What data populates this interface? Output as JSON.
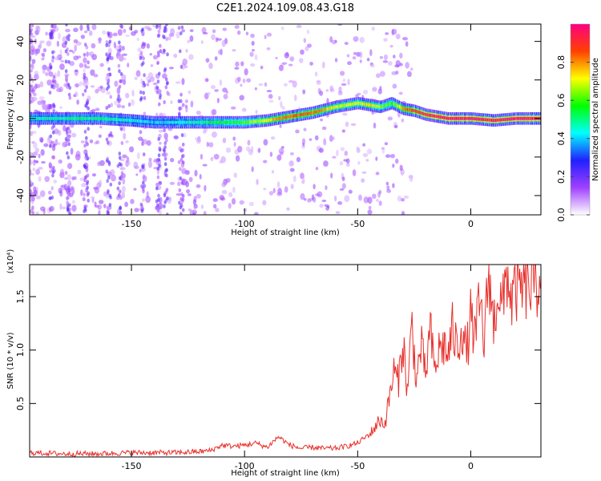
{
  "figure_title": "C2E1.2024.109.08.43.G18",
  "colors": {
    "snr_line": "#e8302c",
    "axis": "#000000",
    "ridge_core": "#e8294a",
    "scatter": "#b48cf0"
  },
  "chart_data": [
    {
      "type": "heatmap",
      "ylabel": "Frequency (Hz)",
      "xlabel": "Height of straight line (km)",
      "xlim": [
        -195,
        31
      ],
      "ylim": [
        -50,
        49
      ],
      "x_ticks": [
        -150,
        -100,
        -50,
        0
      ],
      "x_tick_labels": [
        "-150",
        "-100",
        "-50",
        "0"
      ],
      "y_ticks": [
        -40,
        -20,
        0,
        20,
        40
      ],
      "y_tick_labels": [
        "-40",
        "-20",
        "0",
        "20",
        "40"
      ],
      "colorbar": {
        "label": "Normalized spectral amplitude",
        "range": [
          0,
          1
        ],
        "ticks": [
          0.0,
          0.2,
          0.4,
          0.6,
          0.8
        ],
        "tick_labels": [
          "0.0",
          "0.2",
          "0.4",
          "0.6",
          "0.8"
        ],
        "stops": [
          "#ffffff",
          "#a040ff",
          "#2020ff",
          "#00ffff",
          "#00ff00",
          "#ffff00",
          "#ff4000",
          "#ff0080"
        ]
      },
      "ridge": {
        "x": [
          -195,
          -180,
          -165,
          -150,
          -140,
          -130,
          -120,
          -110,
          -100,
          -90,
          -80,
          -70,
          -60,
          -50,
          -45,
          -40,
          -35,
          -30,
          -25,
          -20,
          -10,
          0,
          10,
          20,
          31
        ],
        "frequency": [
          0,
          0,
          0,
          -1,
          -2,
          -2,
          -2,
          -2,
          -2,
          -1,
          1,
          3,
          6,
          8,
          7,
          6,
          8,
          5,
          4,
          2,
          0,
          0,
          -1,
          0,
          0
        ],
        "peak_amplitude": [
          0.45,
          0.5,
          0.5,
          0.45,
          0.4,
          0.45,
          0.5,
          0.55,
          0.6,
          0.75,
          0.85,
          0.85,
          0.7,
          0.7,
          0.75,
          0.65,
          0.6,
          0.8,
          0.9,
          0.95,
          1.0,
          1.0,
          0.95,
          1.0,
          1.0
        ]
      }
    },
    {
      "type": "line",
      "ylabel": "SNR (10 * v/v)",
      "xlabel": "Height of straight line (km)",
      "y_multiplier_label": "(x10⁴)",
      "xlim": [
        -195,
        31
      ],
      "ylim": [
        0,
        1.8
      ],
      "x_ticks": [
        -150,
        -100,
        -50,
        0
      ],
      "x_tick_labels": [
        "-150",
        "-100",
        "-50",
        "0"
      ],
      "y_ticks": [
        0.5,
        1.0,
        1.5
      ],
      "y_tick_labels": [
        "0.5",
        "1.0",
        "1.5"
      ],
      "series": [
        {
          "x": [
            -195,
            -180,
            -165,
            -150,
            -140,
            -130,
            -120,
            -115,
            -110,
            -105,
            -100,
            -95,
            -90,
            -85,
            -80,
            -75,
            -70,
            -65,
            -60,
            -55,
            -50,
            -45,
            -40,
            -38,
            -36,
            -34,
            -32,
            -30,
            -28,
            -26,
            -24,
            -22,
            -20,
            -18,
            -16,
            -14,
            -12,
            -10,
            -8,
            -6,
            -4,
            -2,
            0,
            2,
            4,
            6,
            8,
            10,
            12,
            14,
            16,
            18,
            20,
            22,
            24,
            26,
            28,
            31
          ],
          "values": [
            0.03,
            0.02,
            0.02,
            0.03,
            0.03,
            0.03,
            0.04,
            0.05,
            0.1,
            0.09,
            0.1,
            0.12,
            0.08,
            0.18,
            0.1,
            0.07,
            0.08,
            0.07,
            0.07,
            0.09,
            0.12,
            0.2,
            0.35,
            0.3,
            0.55,
            0.8,
            0.7,
            1.1,
            0.6,
            1.25,
            0.7,
            1.05,
            0.75,
            1.2,
            0.8,
            1.0,
            1.05,
            0.95,
            1.2,
            1.0,
            1.25,
            0.95,
            1.3,
            1.1,
            1.45,
            1.05,
            1.8,
            1.2,
            1.6,
            1.35,
            1.75,
            1.45,
            1.6,
            1.55,
            1.62,
            1.58,
            1.63,
            1.66
          ]
        }
      ]
    }
  ]
}
